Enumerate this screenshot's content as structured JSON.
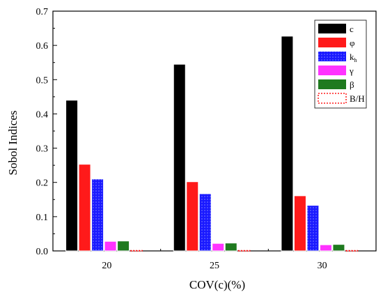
{
  "chart_data": {
    "type": "bar",
    "xlabel": "COV(c)(%)",
    "ylabel": "Sobol Indices",
    "ylim": [
      0,
      0.7
    ],
    "yticks": [
      "0.0",
      "0.1",
      "0.2",
      "0.3",
      "0.4",
      "0.5",
      "0.6",
      "0.7"
    ],
    "categories": [
      "20",
      "25",
      "30"
    ],
    "legend_position": "top-right",
    "grid": false,
    "series": [
      {
        "name": "c",
        "name_sub": "",
        "color": "#000000",
        "pattern": "solid",
        "values": [
          0.44,
          0.545,
          0.627
        ]
      },
      {
        "name": "φ",
        "name_sub": "",
        "color": "#ff1a1a",
        "pattern": "solid",
        "values": [
          0.253,
          0.202,
          0.161
        ]
      },
      {
        "name": "k",
        "name_sub": "h",
        "color": "#1a1aff",
        "pattern": "dotted",
        "values": [
          0.21,
          0.167,
          0.133
        ]
      },
      {
        "name": "γ",
        "name_sub": "",
        "color": "#ff33ff",
        "pattern": "solid",
        "values": [
          0.028,
          0.022,
          0.018
        ]
      },
      {
        "name": "β",
        "name_sub": "",
        "color": "#1f7a1f",
        "pattern": "solid",
        "values": [
          0.029,
          0.023,
          0.019
        ]
      },
      {
        "name": "B/H",
        "name_sub": "",
        "color": "#ff1a1a",
        "pattern": "dashed",
        "values": [
          0.001,
          0.001,
          0.001
        ]
      }
    ]
  }
}
